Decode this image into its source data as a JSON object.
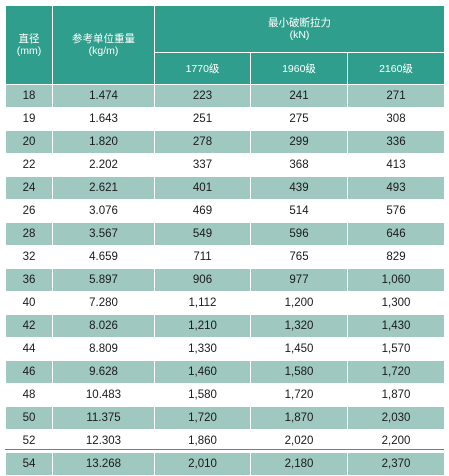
{
  "headers": {
    "diameter": "直径",
    "diameter_unit": "(mm)",
    "unit_weight": "参考单位重量",
    "unit_weight_unit": "(kg/m)",
    "min_break": "最小破断拉力",
    "min_break_unit": "(kN)",
    "grades": [
      "1770级",
      "1960级",
      "2160级"
    ]
  },
  "rows": [
    [
      "18",
      "1.474",
      "223",
      "241",
      "271"
    ],
    [
      "19",
      "1.643",
      "251",
      "275",
      "308"
    ],
    [
      "20",
      "1.820",
      "278",
      "299",
      "336"
    ],
    [
      "22",
      "2.202",
      "337",
      "368",
      "413"
    ],
    [
      "24",
      "2.621",
      "401",
      "439",
      "493"
    ],
    [
      "26",
      "3.076",
      "469",
      "514",
      "576"
    ],
    [
      "28",
      "3.567",
      "549",
      "596",
      "646"
    ],
    [
      "32",
      "4.659",
      "711",
      "765",
      "829"
    ],
    [
      "36",
      "5.897",
      "906",
      "977",
      "1,060"
    ],
    [
      "40",
      "7.280",
      "1,112",
      "1,200",
      "1,300"
    ],
    [
      "42",
      "8.026",
      "1,210",
      "1,320",
      "1,430"
    ],
    [
      "44",
      "8.809",
      "1,330",
      "1,450",
      "1,570"
    ],
    [
      "46",
      "9.628",
      "1,460",
      "1,580",
      "1,720"
    ],
    [
      "48",
      "10.483",
      "1,580",
      "1,720",
      "1,870"
    ],
    [
      "50",
      "11.375",
      "1,720",
      "1,870",
      "2,030"
    ],
    [
      "52",
      "12.303",
      "1,860",
      "2,020",
      "2,200"
    ],
    [
      "54",
      "13.268",
      "2,010",
      "2,180",
      "2,370"
    ]
  ],
  "colors": {
    "header_bg": "#2f9e8d",
    "stripe_bg": "#9fc8c0",
    "plain_bg": "#ffffff"
  }
}
